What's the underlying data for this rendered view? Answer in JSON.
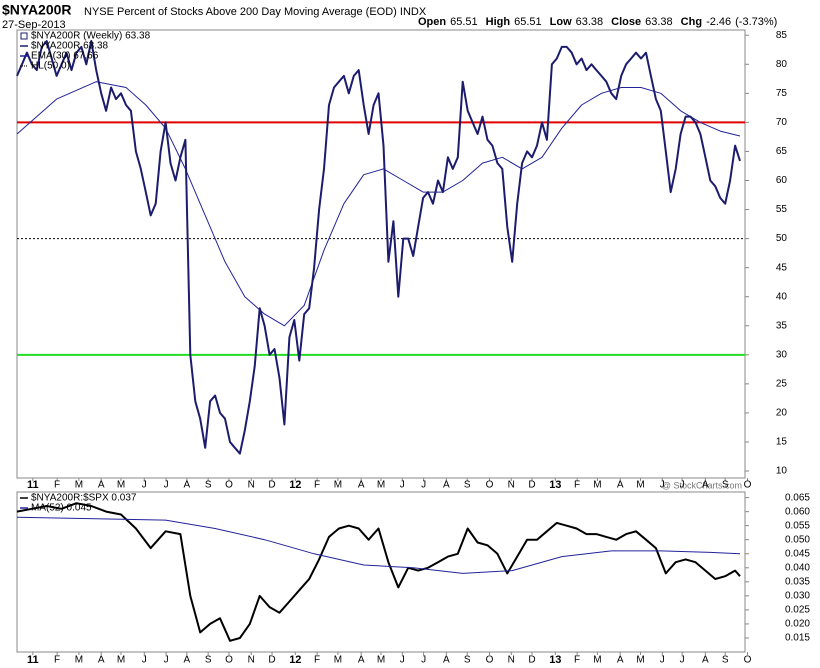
{
  "header": {
    "symbol": "$NYA200R",
    "title": "NYSE Percent of Stocks Above 200 Day Moving Average (EOD) INDX",
    "date": "27-Sep-2013",
    "quote": [
      {
        "label": "Open",
        "value": 65.51
      },
      {
        "label": "High",
        "value": 65.51
      },
      {
        "label": "Low",
        "value": 63.38
      },
      {
        "label": "Close",
        "value": 63.38
      },
      {
        "label": "Chg",
        "value": -2.46
      }
    ],
    "change_pct": "(-3.73%)",
    "source": "@ StockCharts.com"
  },
  "chart_data": [
    {
      "type": "line",
      "legend_title": "$NYA200R (Weekly) 63.38",
      "xlim": [
        0,
        147
      ],
      "ylim": [
        8.8,
        85.9
      ],
      "xticks": [
        {
          "value": 3.2,
          "label": "11"
        },
        {
          "value": 8.1,
          "label": "F"
        },
        {
          "value": 12.5,
          "label": "M"
        },
        {
          "value": 17,
          "label": "A"
        },
        {
          "value": 21,
          "label": "M"
        },
        {
          "value": 25.7,
          "label": "J"
        },
        {
          "value": 30.1,
          "label": "J"
        },
        {
          "value": 34.3,
          "label": "A"
        },
        {
          "value": 38.6,
          "label": "S"
        },
        {
          "value": 42.8,
          "label": "O"
        },
        {
          "value": 47.3,
          "label": "N"
        },
        {
          "value": 51.5,
          "label": "D"
        },
        {
          "value": 56.2,
          "label": "12"
        },
        {
          "value": 60.6,
          "label": "F"
        },
        {
          "value": 64.8,
          "label": "M"
        },
        {
          "value": 69.5,
          "label": "A"
        },
        {
          "value": 73.5,
          "label": "M"
        },
        {
          "value": 77.8,
          "label": "J"
        },
        {
          "value": 82.1,
          "label": "J"
        },
        {
          "value": 86.7,
          "label": "A"
        },
        {
          "value": 90.9,
          "label": "S"
        },
        {
          "value": 95.4,
          "label": "O"
        },
        {
          "value": 99.8,
          "label": "N"
        },
        {
          "value": 104,
          "label": "D"
        },
        {
          "value": 108.7,
          "label": "13"
        },
        {
          "value": 113.1,
          "label": "F"
        },
        {
          "value": 117.2,
          "label": "M"
        },
        {
          "value": 121.8,
          "label": "A"
        },
        {
          "value": 125.9,
          "label": "M"
        },
        {
          "value": 130.3,
          "label": "J"
        },
        {
          "value": 134.3,
          "label": "J"
        },
        {
          "value": 139,
          "label": "A"
        },
        {
          "value": 143,
          "label": "S"
        },
        {
          "value": 147.5,
          "label": "O"
        }
      ],
      "yticks": [
        10,
        15,
        20,
        25,
        30,
        35,
        40,
        45,
        50,
        55,
        60,
        65,
        70,
        75,
        80,
        85
      ],
      "reference_lines": [
        {
          "value": 70,
          "color": "#e00000"
        },
        {
          "value": 30,
          "color": "#22dd22"
        },
        {
          "value": 50,
          "color": "#000000",
          "dash": true,
          "name": "HL(50.0)"
        }
      ],
      "series": [
        {
          "name": "EMA(30) 67.66",
          "color": "#22229a",
          "width": 1,
          "x": [
            0,
            8,
            16,
            22,
            26,
            30,
            34,
            38,
            42,
            46,
            50,
            54,
            58,
            62,
            66,
            70,
            74,
            78,
            82,
            86,
            90,
            94,
            98,
            102,
            106,
            110,
            114,
            118,
            122,
            126,
            130,
            134,
            138,
            142,
            146
          ],
          "values": [
            68,
            74,
            77,
            76,
            73,
            69,
            62,
            54,
            46,
            40,
            37,
            35,
            38.5,
            48,
            56,
            61,
            62,
            60,
            58,
            58,
            60,
            63,
            64,
            62,
            64,
            69,
            73,
            75,
            76,
            76,
            75,
            72,
            70,
            68.5,
            67.66
          ]
        },
        {
          "name": "$NYA200R 63.38",
          "color": "#1c1c6e",
          "width": 2,
          "x": [
            0,
            1,
            2,
            3,
            4,
            5,
            6,
            7,
            8,
            9,
            10,
            11,
            12,
            13,
            14,
            15,
            16,
            17,
            18,
            19,
            20,
            21,
            22,
            23,
            24,
            25,
            26,
            27,
            28,
            29,
            30,
            31,
            32,
            33,
            34,
            35,
            36,
            37,
            38,
            39,
            40,
            41,
            42,
            43,
            44,
            45,
            46,
            47,
            48,
            49,
            50,
            51,
            52,
            53,
            54,
            55,
            56,
            57,
            58,
            59,
            60,
            61,
            62,
            63,
            64,
            65,
            66,
            67,
            68,
            69,
            70,
            71,
            72,
            73,
            74,
            75,
            76,
            77,
            78,
            79,
            80,
            81,
            82,
            83,
            84,
            85,
            86,
            87,
            88,
            89,
            90,
            91,
            92,
            93,
            94,
            95,
            96,
            97,
            98,
            99,
            100,
            101,
            102,
            103,
            104,
            105,
            106,
            107,
            108,
            109,
            110,
            111,
            112,
            113,
            114,
            115,
            116,
            117,
            118,
            119,
            120,
            121,
            122,
            123,
            124,
            125,
            126,
            127,
            128,
            129,
            130,
            131,
            132,
            133,
            134,
            135,
            136,
            137,
            138,
            139,
            140,
            141,
            142,
            143,
            144,
            145,
            146
          ],
          "values": [
            78,
            80,
            82,
            80,
            79,
            83,
            84,
            81,
            78,
            80,
            82,
            79,
            82,
            83,
            80,
            84,
            79,
            75,
            72,
            76,
            74,
            75,
            73,
            72,
            65,
            62,
            58,
            54,
            56,
            65,
            70,
            63,
            60,
            64,
            67,
            30,
            22,
            19,
            14,
            22,
            23,
            20,
            19,
            15,
            14,
            13,
            17,
            22,
            28,
            38,
            35,
            30,
            31,
            26,
            18,
            33,
            36,
            29,
            37,
            38,
            45,
            55,
            62,
            73,
            76,
            77,
            78,
            75,
            78,
            79,
            73,
            68,
            73,
            75,
            66,
            46,
            53,
            40,
            50,
            50,
            47,
            52,
            57,
            58,
            56,
            60,
            58,
            64,
            62,
            64,
            77,
            72,
            70,
            68,
            71,
            67,
            66,
            63,
            62,
            52,
            46,
            56,
            63,
            65,
            64,
            66,
            70,
            67,
            80,
            81,
            83,
            83,
            82,
            80,
            81,
            79,
            80,
            79,
            78,
            77,
            75,
            74,
            78,
            80,
            81,
            82,
            81,
            82,
            78,
            74,
            72,
            65,
            58,
            62,
            68,
            71,
            71,
            70,
            68,
            64,
            60,
            59,
            57,
            56,
            60,
            66,
            63.38
          ]
        }
      ]
    },
    {
      "type": "line",
      "xlim": [
        0,
        147
      ],
      "ylim": [
        0.01,
        0.067
      ],
      "xticks": [
        {
          "value": 3.2,
          "label": "11"
        },
        {
          "value": 8.1,
          "label": "F"
        },
        {
          "value": 12.5,
          "label": "M"
        },
        {
          "value": 17,
          "label": "A"
        },
        {
          "value": 21,
          "label": "M"
        },
        {
          "value": 25.7,
          "label": "J"
        },
        {
          "value": 30.1,
          "label": "J"
        },
        {
          "value": 34.3,
          "label": "A"
        },
        {
          "value": 38.6,
          "label": "S"
        },
        {
          "value": 42.8,
          "label": "O"
        },
        {
          "value": 47.3,
          "label": "N"
        },
        {
          "value": 51.5,
          "label": "D"
        },
        {
          "value": 56.2,
          "label": "12"
        },
        {
          "value": 60.6,
          "label": "F"
        },
        {
          "value": 64.8,
          "label": "M"
        },
        {
          "value": 69.5,
          "label": "A"
        },
        {
          "value": 73.5,
          "label": "M"
        },
        {
          "value": 77.8,
          "label": "J"
        },
        {
          "value": 82.1,
          "label": "J"
        },
        {
          "value": 86.7,
          "label": "A"
        },
        {
          "value": 90.9,
          "label": "S"
        },
        {
          "value": 95.4,
          "label": "O"
        },
        {
          "value": 99.8,
          "label": "N"
        },
        {
          "value": 104,
          "label": "D"
        },
        {
          "value": 108.7,
          "label": "13"
        },
        {
          "value": 113.1,
          "label": "F"
        },
        {
          "value": 117.2,
          "label": "M"
        },
        {
          "value": 121.8,
          "label": "A"
        },
        {
          "value": 125.9,
          "label": "M"
        },
        {
          "value": 130.3,
          "label": "J"
        },
        {
          "value": 134.3,
          "label": "J"
        },
        {
          "value": 139,
          "label": "A"
        },
        {
          "value": 143,
          "label": "S"
        },
        {
          "value": 147.5,
          "label": "O"
        }
      ],
      "yticks": [
        0.015,
        {
          "value": 0.02,
          "label": "0.020"
        },
        0.025,
        {
          "value": 0.03,
          "label": "0.030"
        },
        0.035,
        {
          "value": 0.04,
          "label": "0.040"
        },
        0.045,
        {
          "value": 0.05,
          "label": "0.050"
        },
        0.055,
        {
          "value": 0.06,
          "label": "0.060"
        },
        0.065
      ],
      "series": [
        {
          "name": "$NYA200R:$SPX 0.037",
          "color": "#000000",
          "width": 2,
          "x": [
            0,
            3,
            6,
            9,
            12,
            15,
            18,
            21,
            24,
            27,
            30,
            33,
            35,
            37,
            39,
            41,
            43,
            45,
            47,
            49,
            51,
            53,
            55,
            57,
            59,
            61,
            63,
            65,
            67,
            69,
            71,
            73,
            75,
            77,
            79,
            81,
            83,
            85,
            87,
            89,
            91,
            93,
            95,
            97,
            99,
            101,
            103,
            105,
            107,
            109,
            111,
            113,
            115,
            117,
            119,
            121,
            123,
            125,
            127,
            129,
            131,
            133,
            135,
            137,
            139,
            141,
            143,
            145,
            146
          ],
          "values": [
            0.06,
            0.061,
            0.062,
            0.061,
            0.063,
            0.062,
            0.06,
            0.059,
            0.054,
            0.047,
            0.053,
            0.052,
            0.03,
            0.017,
            0.02,
            0.022,
            0.014,
            0.015,
            0.02,
            0.03,
            0.026,
            0.024,
            0.028,
            0.032,
            0.036,
            0.043,
            0.051,
            0.054,
            0.055,
            0.054,
            0.05,
            0.054,
            0.042,
            0.033,
            0.04,
            0.039,
            0.04,
            0.042,
            0.044,
            0.045,
            0.054,
            0.049,
            0.048,
            0.045,
            0.038,
            0.044,
            0.05,
            0.05,
            0.053,
            0.056,
            0.055,
            0.054,
            0.052,
            0.052,
            0.051,
            0.05,
            0.052,
            0.053,
            0.05,
            0.047,
            0.038,
            0.042,
            0.043,
            0.042,
            0.039,
            0.036,
            0.037,
            0.039,
            0.037
          ]
        },
        {
          "name": "MA(52) 0.045",
          "color": "#22229a",
          "width": 1,
          "x": [
            0,
            30,
            40,
            50,
            60,
            70,
            80,
            90,
            100,
            110,
            120,
            130,
            140,
            146
          ],
          "values": [
            0.058,
            0.057,
            0.054,
            0.05,
            0.045,
            0.041,
            0.04,
            0.038,
            0.039,
            0.044,
            0.046,
            0.046,
            0.0455,
            0.045
          ]
        }
      ]
    }
  ]
}
